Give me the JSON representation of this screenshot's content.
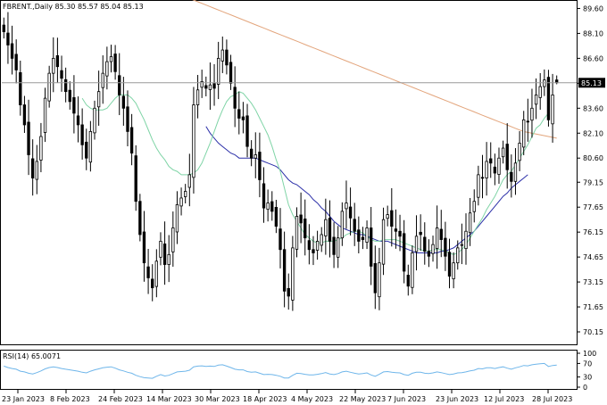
{
  "window": {
    "header": "FBRENT.,Daily  85.30 85.57 85.04 85.13"
  },
  "price_tag": "85.13",
  "colors": {
    "background": "#ffffff",
    "candle": "#000000",
    "sma_fast": "#7fd4a6",
    "sma_mid": "#2b2fa8",
    "sma_slow": "#e3a57c",
    "rsi": "#6fb6ea",
    "price_line": "#9a9a9a",
    "tag_bg": "#000000",
    "tag_text": "#ffffff"
  },
  "chart_data": {
    "type": "candlestick",
    "symbol": "FBRENT.",
    "timeframe": "Daily",
    "last_bar": {
      "open": 85.3,
      "high": 85.57,
      "low": 85.04,
      "close": 85.13
    },
    "ylim": [
      69.4,
      90.0
    ],
    "y_ticks": [
      "89.60",
      "88.10",
      "86.60",
      "85.10",
      "83.60",
      "82.10",
      "80.60",
      "79.15",
      "77.65",
      "76.15",
      "74.65",
      "73.15",
      "71.65",
      "70.15"
    ],
    "x_tick_labels": [
      "23 Jan 2023",
      "8 Feb 2023",
      "24 Feb 2023",
      "14 Mar 2023",
      "30 Mar 2023",
      "18 Apr 2023",
      "4 May 2023",
      "22 May 2023",
      "7 Jun 2023",
      "23 Jun 2023",
      "12 Jul 2023",
      "28 Jul 2023"
    ],
    "grid": false,
    "close": [
      88.2,
      87.4,
      86.6,
      85.9,
      83.8,
      82.6,
      80.8,
      79.4,
      80.4,
      81.9,
      84.2,
      85.7,
      86.6,
      86.1,
      85.4,
      84.6,
      84.0,
      83.3,
      82.6,
      81.4,
      80.6,
      82.2,
      83.6,
      84.6,
      85.7,
      86.4,
      86.7,
      85.8,
      84.4,
      83.6,
      82.2,
      80.9,
      78.0,
      76.0,
      74.3,
      73.4,
      72.8,
      74.4,
      75.6,
      74.2,
      74.8,
      76.4,
      77.8,
      78.2,
      78.6,
      79.6,
      83.8,
      84.7,
      85.2,
      84.8,
      85.0,
      84.8,
      86.6,
      87.1,
      86.2,
      85.1,
      83.6,
      83.0,
      82.9,
      81.3,
      80.6,
      80.8,
      79.3,
      77.6,
      77.9,
      77.4,
      76.5,
      75.1,
      72.6,
      72.3,
      75.2,
      77.1,
      76.7,
      75.8,
      75.1,
      74.9,
      75.6,
      76.0,
      76.9,
      75.6,
      74.8,
      75.8,
      77.4,
      77.9,
      77.0,
      76.2,
      75.6,
      75.7,
      76.4,
      74.1,
      72.5,
      74.3,
      76.9,
      77.2,
      76.5,
      76.2,
      75.9,
      73.8,
      72.9,
      74.9,
      75.9,
      76.0,
      75.0,
      74.7,
      75.4,
      76.4,
      75.7,
      74.7,
      73.5,
      74.3,
      75.2,
      75.4,
      76.2,
      77.3,
      78.0,
      79.6,
      79.4,
      80.4,
      80.3,
      79.7,
      80.6,
      81.2,
      79.9,
      79.2,
      80.3,
      81.5,
      82.9,
      82.8,
      83.6,
      84.4,
      84.9,
      85.3,
      82.9,
      84.4,
      85.13
    ],
    "sma_fast": [
      null,
      null,
      null,
      null,
      null,
      null,
      null,
      null,
      null,
      null,
      null,
      null,
      null,
      null,
      null,
      null,
      null,
      null,
      null,
      84.2,
      83.8,
      83.6,
      83.5,
      83.5,
      83.5,
      83.6,
      83.9,
      84.2,
      84.4,
      84.4,
      84.4,
      84.2,
      83.9,
      83.4,
      82.9,
      82.3,
      81.7,
      81.2,
      80.8,
      80.5,
      80.1,
      79.9,
      79.8,
      79.6,
      79.6,
      79.6,
      79.7,
      79.9,
      80.3,
      80.9,
      81.5,
      82.2,
      82.9,
      83.5,
      84.0,
      84.3,
      84.4,
      84.6,
      84.5,
      84.2,
      83.9,
      83.5,
      83.0,
      82.5,
      82.0,
      81.3,
      80.5,
      79.8,
      78.8,
      77.8,
      77.2,
      76.8,
      76.4,
      76.0,
      75.8,
      75.6,
      75.5,
      75.5,
      75.6,
      75.6,
      75.6,
      75.7,
      75.8,
      76.0,
      76.1,
      76.2,
      76.2,
      76.1,
      75.9,
      75.7,
      75.6,
      75.6,
      75.7,
      75.7,
      75.7,
      75.7,
      75.6,
      75.5,
      75.4,
      75.3,
      75.2,
      75.1,
      75.0,
      75.0,
      75.1,
      75.1,
      75.1,
      75.0,
      74.9,
      74.8,
      74.9,
      75.1,
      75.4,
      75.8,
      76.2,
      76.6,
      77.0,
      77.5,
      77.9,
      78.3,
      78.8,
      79.3,
      79.6,
      79.8,
      80.2,
      80.6,
      81.0,
      81.4,
      81.9,
      82.4,
      82.6,
      83.0,
      83.3
    ],
    "sma_mid": [
      null,
      null,
      null,
      null,
      null,
      null,
      null,
      null,
      null,
      null,
      null,
      null,
      null,
      null,
      null,
      null,
      null,
      null,
      null,
      null,
      null,
      null,
      null,
      null,
      null,
      null,
      null,
      null,
      null,
      null,
      null,
      null,
      null,
      null,
      null,
      null,
      null,
      null,
      null,
      null,
      null,
      null,
      null,
      null,
      null,
      null,
      null,
      null,
      null,
      82.5,
      82.1,
      81.8,
      81.5,
      81.3,
      81.1,
      80.9,
      80.8,
      80.6,
      80.6,
      80.6,
      80.6,
      80.6,
      80.5,
      80.4,
      80.3,
      80.2,
      80.1,
      79.9,
      79.6,
      79.3,
      79.1,
      79.0,
      78.8,
      78.6,
      78.4,
      78.1,
      77.9,
      77.6,
      77.4,
      77.1,
      76.8,
      76.6,
      76.4,
      76.3,
      76.2,
      76.1,
      76.0,
      76.0,
      75.9,
      75.8,
      75.7,
      75.6,
      75.6,
      75.6,
      75.5,
      75.4,
      75.3,
      75.2,
      75.1,
      75.0,
      74.9,
      74.9,
      74.9,
      74.9,
      74.9,
      74.9,
      75.0,
      75.0,
      75.1,
      75.2,
      75.4,
      75.6,
      75.8,
      76.0,
      76.2,
      76.5,
      76.8,
      77.1,
      77.4,
      77.7,
      78.0,
      78.3,
      78.5,
      78.8,
      79.0,
      79.2,
      79.4,
      79.6
    ],
    "sma_slow": [
      null,
      null,
      null,
      null,
      null,
      null,
      null,
      null,
      null,
      null,
      null,
      null,
      null,
      null,
      null,
      null,
      null,
      null,
      null,
      null,
      null,
      null,
      null,
      null,
      null,
      null,
      null,
      null,
      null,
      null,
      null,
      null,
      null,
      null,
      null,
      null,
      null,
      null,
      null,
      null,
      null,
      null,
      null,
      null,
      null,
      null,
      null,
      null,
      null,
      null,
      null,
      null,
      null,
      null,
      null,
      null,
      null,
      null,
      null,
      null,
      null,
      null,
      null,
      null,
      null,
      null,
      null,
      null,
      null,
      null,
      null,
      null,
      null,
      null,
      null,
      null,
      null,
      null,
      null,
      null,
      null,
      null,
      null,
      null,
      null,
      null,
      null,
      null,
      null,
      null,
      null,
      null,
      null,
      null,
      null,
      null,
      null,
      null,
      null,
      null,
      null,
      null,
      null,
      null,
      null,
      null,
      null,
      null,
      null,
      null,
      null,
      null,
      null,
      null,
      null,
      null,
      null,
      null,
      null,
      null,
      null,
      null,
      null,
      null,
      null,
      null,
      null,
      null,
      null,
      null,
      null,
      null,
      null,
      null,
      null,
      null
    ],
    "sma_slow_visible": [
      90.2,
      90.0,
      89.8,
      89.6,
      89.4,
      89.2,
      89.0,
      88.8,
      88.6,
      88.4,
      88.2,
      88.0,
      87.8,
      87.6,
      87.4,
      87.2,
      87.0,
      86.8,
      86.6,
      86.4,
      86.2,
      86.0,
      85.8,
      85.6,
      85.4,
      85.2,
      85.0,
      84.8,
      84.6,
      84.4,
      84.2,
      84.0,
      83.8,
      83.6,
      83.4,
      83.2,
      83.0,
      82.8,
      82.6,
      82.4,
      82.2,
      82.1,
      82.0,
      81.9,
      81.8
    ],
    "rsi": {
      "label": "RSI(14) 65.0071",
      "ylim": [
        0,
        100
      ],
      "ticks": [
        "100",
        "70",
        "30",
        "0"
      ],
      "values": [
        62,
        58,
        55,
        53,
        47,
        45,
        41,
        39,
        43,
        48,
        54,
        58,
        60,
        58,
        55,
        53,
        51,
        49,
        47,
        44,
        42,
        47,
        51,
        54,
        57,
        59,
        60,
        56,
        51,
        48,
        44,
        41,
        35,
        31,
        28,
        27,
        26,
        32,
        37,
        33,
        35,
        40,
        45,
        46,
        47,
        50,
        60,
        62,
        63,
        61,
        62,
        61,
        65,
        66,
        62,
        58,
        53,
        51,
        51,
        46,
        44,
        45,
        41,
        37,
        38,
        37,
        35,
        32,
        27,
        27,
        35,
        41,
        40,
        38,
        36,
        36,
        38,
        40,
        43,
        39,
        37,
        40,
        45,
        47,
        44,
        41,
        39,
        40,
        42,
        36,
        32,
        38,
        45,
        46,
        44,
        43,
        42,
        37,
        35,
        41,
        44,
        44,
        41,
        40,
        42,
        45,
        43,
        40,
        37,
        39,
        42,
        43,
        45,
        48,
        50,
        55,
        54,
        57,
        57,
        55,
        58,
        60,
        56,
        53,
        57,
        60,
        64,
        63,
        66,
        68,
        69,
        70,
        61,
        64,
        65
      ]
    }
  }
}
